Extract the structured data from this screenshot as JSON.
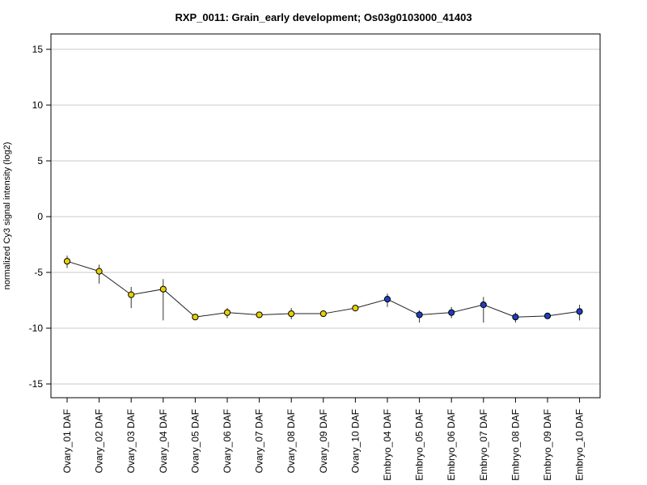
{
  "chart_data": {
    "type": "line",
    "title": "RXP_0011: Grain_early development; Os03g0103000_41403",
    "xlabel": "",
    "ylabel": "normalized Cy3 signal intensity (log2)",
    "ylim": [
      -16,
      16
    ],
    "yticks": [
      15,
      10,
      5,
      0,
      -5,
      -10,
      -15
    ],
    "ytick_labels": [
      "15",
      "10",
      "5",
      "0",
      "-5",
      "-10",
      "-15"
    ],
    "grid": "horizontal",
    "categories": [
      "Ovary_01 DAF",
      "Ovary_02 DAF",
      "Ovary_03 DAF",
      "Ovary_04 DAF",
      "Ovary_05 DAF",
      "Ovary_06 DAF",
      "Ovary_07 DAF",
      "Ovary_08 DAF",
      "Ovary_09 DAF",
      "Ovary_10 DAF",
      "Embryo_04 DAF",
      "Embryo_05 DAF",
      "Embryo_06 DAF",
      "Embryo_07 DAF",
      "Embryo_08 DAF",
      "Embryo_09 DAF",
      "Embryo_10 DAF"
    ],
    "values": [
      -4.0,
      -4.9,
      -7.0,
      -6.5,
      -9.0,
      -8.6,
      -8.8,
      -8.7,
      -8.7,
      -8.2,
      -7.4,
      -8.8,
      -8.6,
      -7.9,
      -9.0,
      -8.9,
      -8.5
    ],
    "err_low": [
      -4.6,
      -6.0,
      -8.2,
      -9.3,
      -9.2,
      -9.1,
      -9.0,
      -9.2,
      -8.8,
      -8.4,
      -8.1,
      -9.5,
      -9.1,
      -9.5,
      -9.5,
      -9.0,
      -9.3
    ],
    "err_high": [
      -3.5,
      -4.3,
      -6.3,
      -5.6,
      -8.8,
      -8.2,
      -8.6,
      -8.2,
      -8.5,
      -8.0,
      -6.9,
      -8.4,
      -8.1,
      -7.2,
      -8.6,
      -8.7,
      -7.9
    ],
    "point_colors": [
      "#e8d000",
      "#e8d000",
      "#e8d000",
      "#e8d000",
      "#e8d000",
      "#e8d000",
      "#e8d000",
      "#e8d000",
      "#e8d000",
      "#e8d000",
      "#1f3fbf",
      "#1f3fbf",
      "#1f3fbf",
      "#1f3fbf",
      "#1f3fbf",
      "#1f3fbf",
      "#1f3fbf"
    ],
    "line_color": "#222222",
    "grid_color": "#c8c8c8"
  }
}
